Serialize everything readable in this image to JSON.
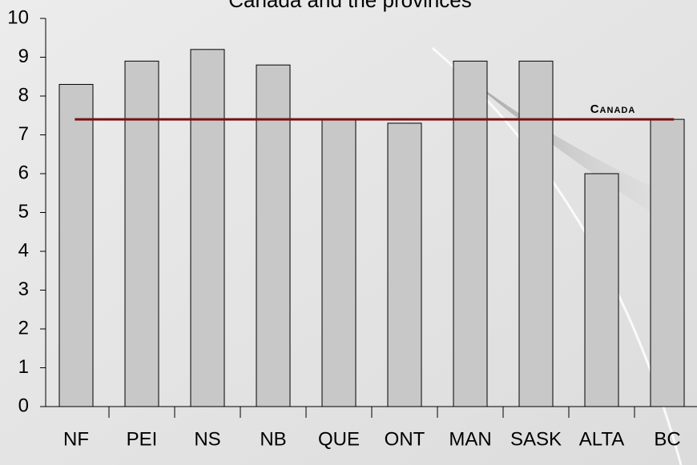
{
  "chart_data": {
    "type": "bar",
    "title": "Canada and the provinces",
    "categories": [
      "NF",
      "PEI",
      "NS",
      "NB",
      "QUE",
      "ONT",
      "MAN",
      "SASK",
      "ALTA",
      "BC"
    ],
    "values": [
      8.3,
      8.9,
      9.2,
      8.8,
      7.4,
      7.3,
      8.9,
      8.9,
      6.0,
      7.4
    ],
    "color": "#c8c8c8",
    "ylim": [
      0,
      10
    ],
    "yticks": [
      0,
      1,
      2,
      3,
      4,
      5,
      6,
      7,
      8,
      9,
      10
    ],
    "reference_line": {
      "value": 7.4,
      "label": "Canada",
      "color": "#7a1010"
    }
  }
}
